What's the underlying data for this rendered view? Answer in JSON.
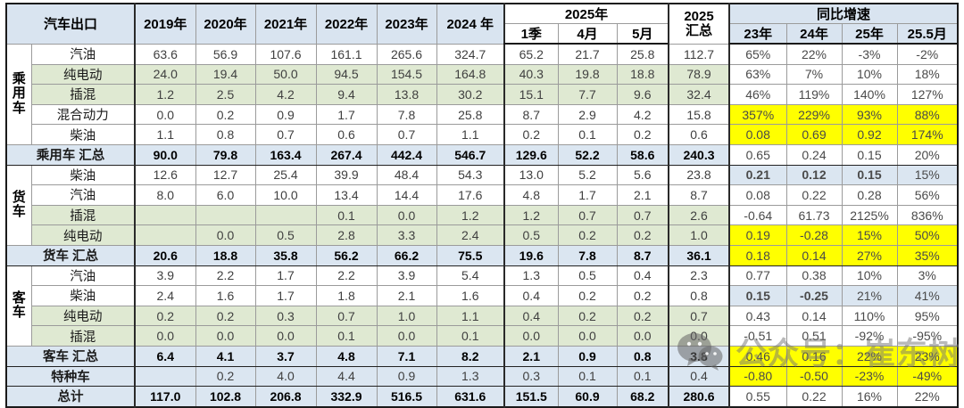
{
  "chart_data": {
    "type": "table",
    "title": "汽车出口",
    "header": {
      "corner": "汽车出口",
      "years": [
        "2019年",
        "2020年",
        "2021年",
        "2022年",
        "2023年",
        "2024 年"
      ],
      "y2025_group": "2025年",
      "y2025_sub": [
        "1季",
        "4月",
        "5月"
      ],
      "total_col": "2025\n汇总",
      "growth_group": "同比增速",
      "growth_sub": [
        "23年",
        "24年",
        "25年",
        "25.5月"
      ]
    },
    "groups": [
      {
        "label": "乘\n用\n车",
        "start": 0,
        "size": 5
      },
      {
        "label": "货\n车",
        "start": 6,
        "size": 4
      },
      {
        "label": "客\n车",
        "start": 11,
        "size": 4
      }
    ],
    "rows": [
      {
        "type": "data",
        "label": "汽油",
        "shade": "plain",
        "values": [
          "63.6",
          "56.9",
          "107.6",
          "161.1",
          "265.6",
          "324.7",
          "65.2",
          "21.7",
          "25.8",
          "112.7"
        ],
        "growth": [
          "65%",
          "22%",
          "-3%",
          "-2%"
        ],
        "growthShade": "plain"
      },
      {
        "type": "data",
        "label": "纯电动",
        "shade": "green",
        "values": [
          "24.0",
          "19.4",
          "50.0",
          "94.5",
          "154.5",
          "164.8",
          "40.3",
          "19.8",
          "18.8",
          "78.9"
        ],
        "growth": [
          "63%",
          "7%",
          "10%",
          "18%"
        ],
        "growthShade": "plain"
      },
      {
        "type": "data",
        "label": "插混",
        "shade": "green",
        "values": [
          "1.2",
          "2.5",
          "4.2",
          "9.4",
          "13.8",
          "30.2",
          "15.1",
          "7.7",
          "9.6",
          "32.4"
        ],
        "growth": [
          "46%",
          "119%",
          "140%",
          "127%"
        ],
        "growthShade": "plain"
      },
      {
        "type": "data",
        "label": "混合动力",
        "shade": "plain",
        "values": [
          "0.0",
          "0.2",
          "0.9",
          "1.7",
          "7.8",
          "25.8",
          "8.7",
          "2.9",
          "4.2",
          "15.8"
        ],
        "growth": [
          "357%",
          "229%",
          "93%",
          "88%"
        ],
        "growthShade": "yellow"
      },
      {
        "type": "data",
        "label": "柴油",
        "shade": "plain",
        "values": [
          "1.1",
          "0.8",
          "0.7",
          "0.6",
          "0.7",
          "1.1",
          "0.2",
          "0.1",
          "0.2",
          "0.6"
        ],
        "growth": [
          "0.08",
          "0.69",
          "0.92",
          "174%"
        ],
        "growthShade": "yellow"
      },
      {
        "type": "summary",
        "label": "乘用车 汇总",
        "shade": "rowblue",
        "values": [
          "90.0",
          "79.8",
          "163.4",
          "267.4",
          "442.4",
          "546.7",
          "129.6",
          "52.2",
          "58.6",
          "240.3"
        ],
        "growth": [
          "0.65",
          "0.24",
          "0.15",
          "20%"
        ],
        "growthShade": "plain"
      },
      {
        "type": "data",
        "label": "柴油",
        "shade": "plain",
        "values": [
          "12.6",
          "12.7",
          "25.4",
          "39.9",
          "48.4",
          "54.3",
          "13.0",
          "5.2",
          "5.6",
          "23.8"
        ],
        "growth": [
          "0.21",
          "0.12",
          "0.15",
          "15%"
        ],
        "growthShade": "blue"
      },
      {
        "type": "data",
        "label": "汽油",
        "shade": "plain",
        "values": [
          "8.0",
          "6.0",
          "10.0",
          "13.4",
          "14.4",
          "17.6",
          "4.8",
          "1.7",
          "2.1",
          "8.7"
        ],
        "growth": [
          "0.08",
          "0.22",
          "0.28",
          "56%"
        ],
        "growthShade": "plain"
      },
      {
        "type": "data",
        "label": "插混",
        "shade": "green",
        "values": [
          "",
          "",
          "",
          "0.1",
          "0.0",
          "1.2",
          "1.2",
          "0.7",
          "0.7",
          "2.6"
        ],
        "growth": [
          "-0.64",
          "61.73",
          "2125%",
          "836%"
        ],
        "growthShade": "plain"
      },
      {
        "type": "data",
        "label": "纯电动",
        "shade": "green",
        "values": [
          "",
          "0.0",
          "0.5",
          "2.8",
          "3.3",
          "2.4",
          "0.5",
          "0.2",
          "0.2",
          "1.0"
        ],
        "growth": [
          "0.19",
          "-0.28",
          "15%",
          "50%"
        ],
        "growthShade": "yellow"
      },
      {
        "type": "summary",
        "label": "货车 汇总",
        "shade": "rowblue",
        "values": [
          "20.6",
          "18.8",
          "35.8",
          "56.2",
          "66.2",
          "75.5",
          "19.6",
          "7.8",
          "8.7",
          "36.1"
        ],
        "growth": [
          "0.18",
          "0.14",
          "27%",
          "35%"
        ],
        "growthShade": "yellow"
      },
      {
        "type": "data",
        "label": "汽油",
        "shade": "plain",
        "values": [
          "3.9",
          "2.2",
          "1.7",
          "2.2",
          "3.9",
          "5.4",
          "1.3",
          "0.5",
          "0.4",
          "2.3"
        ],
        "growth": [
          "0.77",
          "0.38",
          "10%",
          "3%"
        ],
        "growthShade": "plain"
      },
      {
        "type": "data",
        "label": "柴油",
        "shade": "plain",
        "values": [
          "2.4",
          "1.6",
          "1.7",
          "1.8",
          "2.1",
          "1.6",
          "0.4",
          "0.2",
          "0.2",
          "0.8"
        ],
        "growth": [
          "0.15",
          "-0.25",
          "21%",
          "41%"
        ],
        "growthShade": "blue"
      },
      {
        "type": "data",
        "label": "纯电动",
        "shade": "green",
        "values": [
          "0.2",
          "0.2",
          "0.3",
          "0.7",
          "1.0",
          "1.1",
          "0.4",
          "0.2",
          "0.2",
          "0.7"
        ],
        "growth": [
          "0.43",
          "0.14",
          "110%",
          "95%"
        ],
        "growthShade": "plain"
      },
      {
        "type": "data",
        "label": "插混",
        "shade": "green",
        "values": [
          "0.0",
          "0.0",
          "0.0",
          "0.1",
          "0.0",
          "0.1",
          "0.0",
          "0.0",
          "0.0",
          "0.0"
        ],
        "growth": [
          "-0.51",
          "0.51",
          "-92%",
          "-95%"
        ],
        "growthShade": "plain"
      },
      {
        "type": "summary",
        "label": "客车 汇总",
        "shade": "rowblue",
        "values": [
          "6.4",
          "4.1",
          "3.7",
          "4.8",
          "7.1",
          "8.2",
          "2.1",
          "0.9",
          "0.8",
          "3.8"
        ],
        "growth": [
          "0.46",
          "0.16",
          "22%",
          "23%"
        ],
        "growthShade": "yellow"
      },
      {
        "type": "special",
        "label": "特种车",
        "shade": "rowblue",
        "values": [
          "",
          "0.2",
          "4.0",
          "4.4",
          "0.9",
          "1.3",
          "0.3",
          "0.1",
          "0.1",
          "0.4"
        ],
        "growth": [
          "-0.80",
          "-0.50",
          "-23%",
          "-49%"
        ],
        "growthShade": "yellow"
      },
      {
        "type": "summary",
        "label": "总计",
        "shade": "rowblue",
        "values": [
          "117.0",
          "102.8",
          "206.8",
          "332.9",
          "516.5",
          "631.6",
          "151.5",
          "60.9",
          "68.2",
          "280.6"
        ],
        "growth": [
          "0.55",
          "0.22",
          "16%",
          "22%"
        ],
        "growthShade": "plain"
      }
    ],
    "layout": {
      "legend": "none",
      "grid": "all-borders"
    }
  },
  "colors": {
    "header_blue": "#d9e4f0",
    "summary_row_blue": "#dbe6f1",
    "nev_row_green": "#dfe9d2",
    "highlight_yellow": "#ffff00",
    "growth_blue": "#dbe6f1",
    "negative_red": "#ff4040"
  },
  "watermark": {
    "text": "公众号：崔东树"
  }
}
